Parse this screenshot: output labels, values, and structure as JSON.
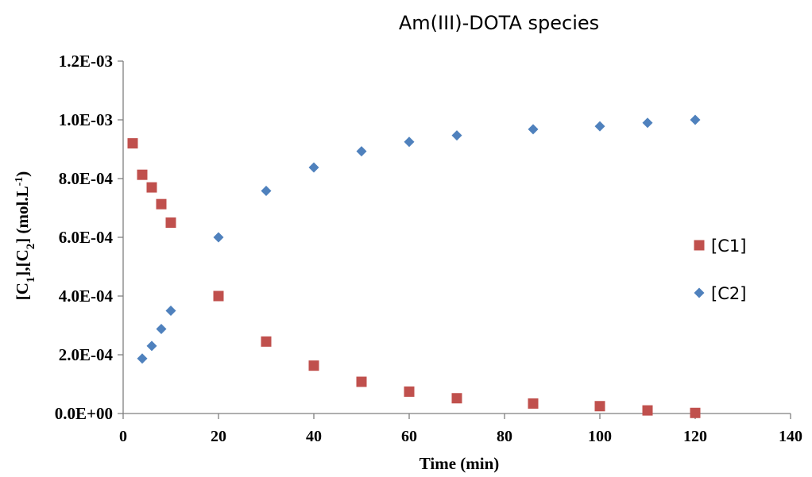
{
  "chart_data": {
    "type": "scatter",
    "title": "Am(III)-DOTA species",
    "xlabel": "Time (min)",
    "ylabel": {
      "p1": "[C",
      "s1": "1",
      "p2": "],[C",
      "s2": "2",
      "p3": "] (mol.L",
      "s3": "-1",
      "p4": ")"
    },
    "xlim": [
      0,
      140
    ],
    "ylim": [
      0,
      0.0012
    ],
    "x_ticks": [
      0,
      20,
      40,
      60,
      80,
      100,
      120,
      140
    ],
    "x_tick_labels": [
      "0",
      "20",
      "40",
      "60",
      "80",
      "100",
      "120",
      "140"
    ],
    "y_ticks": [
      0,
      0.0002,
      0.0004,
      0.0006,
      0.0008,
      0.001,
      0.0012
    ],
    "y_tick_labels": [
      "0.0E+00",
      "2.0E-04",
      "4.0E-04",
      "6.0E-04",
      "8.0E-04",
      "1.0E-03",
      "1.2E-03"
    ],
    "grid": false,
    "legend_position": "right",
    "series": [
      {
        "name": "[C1]",
        "marker": "square",
        "color": "#C0504D",
        "x": [
          2,
          4,
          6,
          8,
          10,
          20,
          30,
          40,
          50,
          60,
          70,
          86,
          100,
          110,
          120
        ],
        "y": [
          0.00092,
          0.000813,
          0.00077,
          0.000713,
          0.00065,
          0.0004,
          0.000245,
          0.000163,
          0.000108,
          7.45e-05,
          5.2e-05,
          3.4e-05,
          2.5e-05,
          1.05e-05,
          2e-06
        ]
      },
      {
        "name": "[C2]",
        "marker": "diamond",
        "color": "#4F81BD",
        "x": [
          4,
          6,
          8,
          10,
          20,
          30,
          40,
          50,
          60,
          70,
          86,
          100,
          110,
          120
        ],
        "y": [
          0.000187,
          0.00023,
          0.000288,
          0.00035,
          0.0006,
          0.000758,
          0.000838,
          0.000893,
          0.000925,
          0.000947,
          0.000968,
          0.000978,
          0.00099,
          0.001
        ]
      }
    ]
  }
}
